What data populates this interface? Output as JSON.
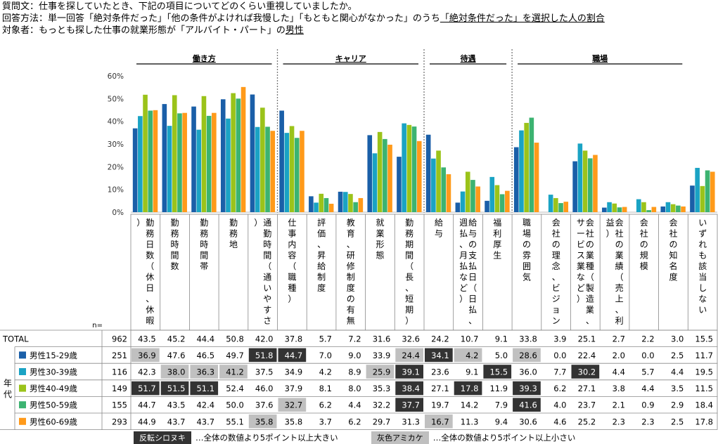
{
  "header": {
    "line1": "質問文：仕事を探していたとき、下記の項目についてどのくらい重視していましたか。",
    "line2_prefix": "回答方法：単一回答「絶対条件だった」「他の条件がよければ我慢した」「もともと関心がなかった」のうち",
    "line2_underlined": "「絶対条件だった」を選択した人の割合",
    "line3_prefix": "対象者：もっとも探した仕事の就業形態が「アルバイト・パート」の",
    "line3_underlined": "男性"
  },
  "chart_data": {
    "type": "bar",
    "ylim": [
      0,
      60
    ],
    "yticks": [
      "0%",
      "10%",
      "20%",
      "30%",
      "40%",
      "50%",
      "60%"
    ],
    "groups": [
      {
        "label": "働き方",
        "start": 0,
        "end": 5
      },
      {
        "label": "キャリア",
        "start": 5,
        "end": 10
      },
      {
        "label": "待遇",
        "start": 10,
        "end": 13
      },
      {
        "label": "職場",
        "start": 13,
        "end": 19
      }
    ],
    "categories": [
      "勤務日数（休日、休暇）",
      "勤務時間数",
      "勤務時間帯",
      "勤務地",
      "通勤時間（通いやすさ）",
      "仕事内容（職種）",
      "評価、昇給制度",
      "教育、研修制度の有無",
      "就業形態",
      "勤務期間（長、短期）",
      "給与",
      "給与の支払日（日払、週払、月払など）",
      "福利厚生",
      "職場の雰囲気",
      "会社の理念、ビジョン",
      "会社の業種（製造業、サービス業など）",
      "会社の業績（売上、利益）",
      "会社の規模",
      "会社の知名度",
      "いずれも該当しない"
    ],
    "n_header": "n=",
    "total": {
      "label": "TOTAL",
      "n": 962,
      "values": [
        43.5,
        45.2,
        44.4,
        50.8,
        42.0,
        37.8,
        5.7,
        7.2,
        31.6,
        32.6,
        24.2,
        10.7,
        9.1,
        33.8,
        3.9,
        25.1,
        2.7,
        2.2,
        3.0,
        15.5
      ]
    },
    "row_group_label": "年代",
    "series": [
      {
        "name": "男性15-29歳",
        "color": "#1a5fa8",
        "n": 251,
        "values": [
          36.9,
          47.6,
          46.5,
          49.7,
          51.8,
          44.7,
          7.0,
          9.0,
          33.9,
          24.4,
          34.1,
          4.2,
          5.0,
          28.6,
          0.0,
          22.4,
          2.0,
          0.0,
          2.5,
          11.7
        ],
        "highlight": [
          "L",
          "",
          "",
          "",
          "H",
          "H",
          "",
          "",
          "",
          "L",
          "H",
          "L",
          "",
          "L",
          "",
          "",
          "",
          "",
          "",
          ""
        ]
      },
      {
        "name": "男性30-39歳",
        "color": "#1aa3c4",
        "n": 116,
        "values": [
          42.3,
          38.0,
          36.3,
          41.2,
          37.5,
          34.9,
          4.2,
          8.9,
          25.9,
          39.1,
          23.6,
          9.1,
          15.5,
          36.0,
          7.7,
          30.2,
          4.4,
          5.7,
          4.4,
          19.5
        ],
        "highlight": [
          "",
          "L",
          "L",
          "L",
          "",
          "",
          "",
          "",
          "L",
          "H",
          "",
          "",
          "H",
          "",
          "",
          "H",
          "",
          "",
          "",
          ""
        ]
      },
      {
        "name": "男性40-49歳",
        "color": "#9bc31a",
        "n": 149,
        "values": [
          51.7,
          51.5,
          51.1,
          52.4,
          46.0,
          37.9,
          8.1,
          8.0,
          35.3,
          38.4,
          27.1,
          17.8,
          11.9,
          39.3,
          6.2,
          27.1,
          3.8,
          4.4,
          3.5,
          11.5
        ],
        "highlight": [
          "H",
          "H",
          "H",
          "",
          "",
          "",
          "",
          "",
          "",
          "H",
          "",
          "H",
          "",
          "H",
          "",
          "",
          "",
          "",
          "",
          ""
        ]
      },
      {
        "name": "男性50-59歳",
        "color": "#3cb371",
        "n": 155,
        "values": [
          44.7,
          43.5,
          42.4,
          50.0,
          37.6,
          32.7,
          6.2,
          4.4,
          32.2,
          37.7,
          19.7,
          14.2,
          7.9,
          41.6,
          4.0,
          23.7,
          2.1,
          0.9,
          2.9,
          18.4
        ],
        "highlight": [
          "",
          "",
          "",
          "",
          "",
          "L",
          "",
          "",
          "",
          "H",
          "",
          "",
          "",
          "H",
          "",
          "",
          "",
          "",
          "",
          ""
        ]
      },
      {
        "name": "男性60-69歳",
        "color": "#ff9a1a",
        "n": 293,
        "values": [
          44.9,
          43.7,
          43.7,
          55.1,
          35.8,
          35.8,
          3.7,
          6.2,
          29.7,
          31.3,
          16.7,
          11.3,
          9.4,
          30.6,
          4.6,
          25.2,
          2.3,
          2.3,
          2.5,
          17.8
        ],
        "highlight": [
          "",
          "",
          "",
          "",
          "L",
          "",
          "",
          "",
          "",
          "",
          "L",
          "",
          "",
          "",
          "",
          "",
          "",
          "",
          "",
          ""
        ]
      }
    ]
  },
  "legend_bottom": {
    "dark_label": "反転シロヌキ",
    "dark_desc": "…全体の数値より5ポイント以上大きい",
    "gray_label": "灰色アミカケ",
    "gray_desc": "…全体の数値より5ポイント以上小さい"
  }
}
